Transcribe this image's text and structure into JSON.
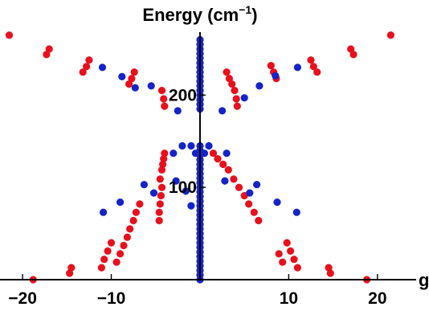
{
  "chart_data": {
    "type": "scatter",
    "title": "",
    "xlabel": "g",
    "ylabel": "Energy (cm⁻¹)",
    "ylabel_main": "Energy (cm",
    "ylabel_sup": "−1",
    "ylabel_close": ")",
    "xlim": [
      -22,
      24
    ],
    "ylim": [
      0,
      270
    ],
    "x_ticks": [
      -20,
      -10,
      10,
      20
    ],
    "x_tick_labels": [
      "−20",
      "−10",
      "10",
      "20"
    ],
    "y_ticks": [
      100,
      200
    ],
    "y_tick_labels": [
      "100",
      "200"
    ],
    "grid": false,
    "legend": "none",
    "series": [
      {
        "color": "#e8101c",
        "points": [
          [
            -21.5,
            265
          ],
          [
            -17.0,
            250
          ],
          [
            -17.3,
            244
          ],
          [
            -12.5,
            238
          ],
          [
            -12.8,
            231
          ],
          [
            -13.2,
            225
          ],
          [
            -7.4,
            225
          ],
          [
            -7.7,
            218
          ],
          [
            -8.0,
            212
          ],
          [
            -4.3,
            205
          ],
          [
            -4.1,
            196
          ],
          [
            -4.0,
            188
          ],
          [
            3.0,
            225
          ],
          [
            3.3,
            218
          ],
          [
            3.6,
            212
          ],
          [
            3.9,
            205
          ],
          [
            4.1,
            196
          ],
          [
            4.2,
            188
          ],
          [
            8.0,
            232
          ],
          [
            8.3,
            225
          ],
          [
            8.6,
            218
          ],
          [
            12.5,
            238
          ],
          [
            12.8,
            231
          ],
          [
            13.2,
            225
          ],
          [
            17.0,
            250
          ],
          [
            17.3,
            244
          ],
          [
            21.5,
            265
          ],
          [
            -4.0,
            137
          ],
          [
            -4.1,
            131
          ],
          [
            -4.2,
            125
          ],
          [
            -4.3,
            119
          ],
          [
            -4.5,
            109
          ],
          [
            -4.3,
            100
          ],
          [
            -4.4,
            91
          ],
          [
            -4.5,
            82
          ],
          [
            -4.6,
            73
          ],
          [
            -4.6,
            64
          ],
          [
            1.5,
            137
          ],
          [
            2.0,
            131
          ],
          [
            2.6,
            125
          ],
          [
            3.2,
            119
          ],
          [
            3.8,
            109
          ],
          [
            4.4,
            100
          ],
          [
            5.0,
            91
          ],
          [
            5.5,
            82
          ],
          [
            6.1,
            73
          ],
          [
            6.6,
            64
          ],
          [
            -6.8,
            82
          ],
          [
            -7.2,
            73
          ],
          [
            -7.5,
            64
          ],
          [
            -7.9,
            55
          ],
          [
            -8.2,
            46
          ],
          [
            -8.6,
            37
          ],
          [
            -9.0,
            28
          ],
          [
            -9.4,
            19
          ],
          [
            -10.0,
            40
          ],
          [
            -10.4,
            31
          ],
          [
            -10.8,
            22
          ],
          [
            -11.1,
            13
          ],
          [
            -14.5,
            13
          ],
          [
            -14.7,
            7
          ],
          [
            -18.8,
            0
          ],
          [
            8.9,
            28
          ],
          [
            9.3,
            19
          ],
          [
            9.8,
            40
          ],
          [
            10.2,
            31
          ],
          [
            10.6,
            22
          ],
          [
            11.0,
            13
          ],
          [
            14.5,
            13
          ],
          [
            14.7,
            7
          ],
          [
            18.8,
            0
          ]
        ]
      },
      {
        "color": "#1523c8",
        "points": [
          [
            0,
            0
          ],
          [
            0,
            5
          ],
          [
            0,
            10
          ],
          [
            0,
            15
          ],
          [
            0,
            20
          ],
          [
            0,
            25
          ],
          [
            0,
            30
          ],
          [
            0,
            35
          ],
          [
            0,
            40
          ],
          [
            0,
            45
          ],
          [
            0,
            50
          ],
          [
            0,
            55
          ],
          [
            0,
            60
          ],
          [
            0,
            65
          ],
          [
            0,
            70
          ],
          [
            0,
            75
          ],
          [
            0,
            80
          ],
          [
            0,
            85
          ],
          [
            0,
            90
          ],
          [
            0,
            95
          ],
          [
            0,
            100
          ],
          [
            0,
            105
          ],
          [
            0,
            110
          ],
          [
            0,
            115
          ],
          [
            0,
            120
          ],
          [
            0,
            125
          ],
          [
            0,
            130
          ],
          [
            0,
            135
          ],
          [
            0,
            140
          ],
          [
            0,
            145
          ],
          [
            0,
            185
          ],
          [
            0,
            190
          ],
          [
            0,
            195
          ],
          [
            0,
            200
          ],
          [
            0,
            205
          ],
          [
            0,
            210
          ],
          [
            0,
            215
          ],
          [
            0,
            220
          ],
          [
            0,
            225
          ],
          [
            0,
            230
          ],
          [
            0,
            235
          ],
          [
            0,
            240
          ],
          [
            0,
            245
          ],
          [
            0,
            250
          ],
          [
            0,
            255
          ],
          [
            0,
            260
          ],
          [
            -2.0,
            145
          ],
          [
            -3.0,
            137
          ],
          [
            -1.0,
            145
          ],
          [
            1.0,
            145
          ],
          [
            3.0,
            137
          ],
          [
            -0.5,
            137
          ],
          [
            0.5,
            137
          ],
          [
            -5.5,
            210
          ],
          [
            -11.0,
            230
          ],
          [
            -8.8,
            220
          ],
          [
            -7.3,
            208
          ],
          [
            -2.5,
            183
          ],
          [
            5.0,
            197
          ],
          [
            6.7,
            210
          ],
          [
            8.5,
            221
          ],
          [
            11.0,
            230
          ],
          [
            2.5,
            183
          ],
          [
            -6.3,
            103
          ],
          [
            -10.9,
            73
          ],
          [
            -9.0,
            84
          ],
          [
            -5.2,
            94
          ],
          [
            -2.7,
            107
          ],
          [
            -1.6,
            96
          ],
          [
            -1.0,
            80
          ],
          [
            6.4,
            103
          ],
          [
            10.9,
            73
          ],
          [
            8.7,
            84
          ],
          [
            5.6,
            94
          ],
          [
            2.8,
            107
          ]
        ]
      }
    ]
  }
}
